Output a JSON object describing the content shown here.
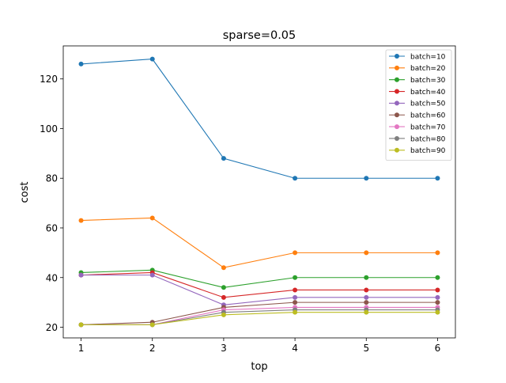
{
  "chart_data": {
    "type": "line",
    "title": "sparse=0.05",
    "xlabel": "top",
    "ylabel": "cost",
    "x": [
      1,
      2,
      3,
      4,
      5,
      6
    ],
    "xticks": [
      1,
      2,
      3,
      4,
      5,
      6
    ],
    "yticks": [
      20,
      40,
      60,
      80,
      100,
      120
    ],
    "xlim": [
      0.75,
      6.25
    ],
    "ylim": [
      15.7,
      133.3
    ],
    "grid": false,
    "legend_position": "top-right",
    "series": [
      {
        "name": "batch=10",
        "color": "#1f77b4",
        "values": [
          126,
          128,
          88,
          80,
          80,
          80
        ]
      },
      {
        "name": "batch=20",
        "color": "#ff7f0e",
        "values": [
          63,
          64,
          44,
          50,
          50,
          50
        ]
      },
      {
        "name": "batch=30",
        "color": "#2ca02c",
        "values": [
          42,
          43,
          36,
          40,
          40,
          40
        ]
      },
      {
        "name": "batch=40",
        "color": "#d62728",
        "values": [
          41,
          42,
          32,
          35,
          35,
          35
        ]
      },
      {
        "name": "batch=50",
        "color": "#9467bd",
        "values": [
          41,
          41,
          29,
          32,
          32,
          32
        ]
      },
      {
        "name": "batch=60",
        "color": "#8c564b",
        "values": [
          21,
          22,
          28,
          30,
          30,
          30
        ]
      },
      {
        "name": "batch=70",
        "color": "#e377c2",
        "values": [
          21,
          21,
          27,
          28,
          28,
          28
        ]
      },
      {
        "name": "batch=80",
        "color": "#7f7f7f",
        "values": [
          21,
          21,
          26,
          27,
          27,
          27
        ]
      },
      {
        "name": "batch=90",
        "color": "#bcbd22",
        "values": [
          21,
          21,
          25,
          26,
          26,
          26
        ]
      }
    ]
  }
}
